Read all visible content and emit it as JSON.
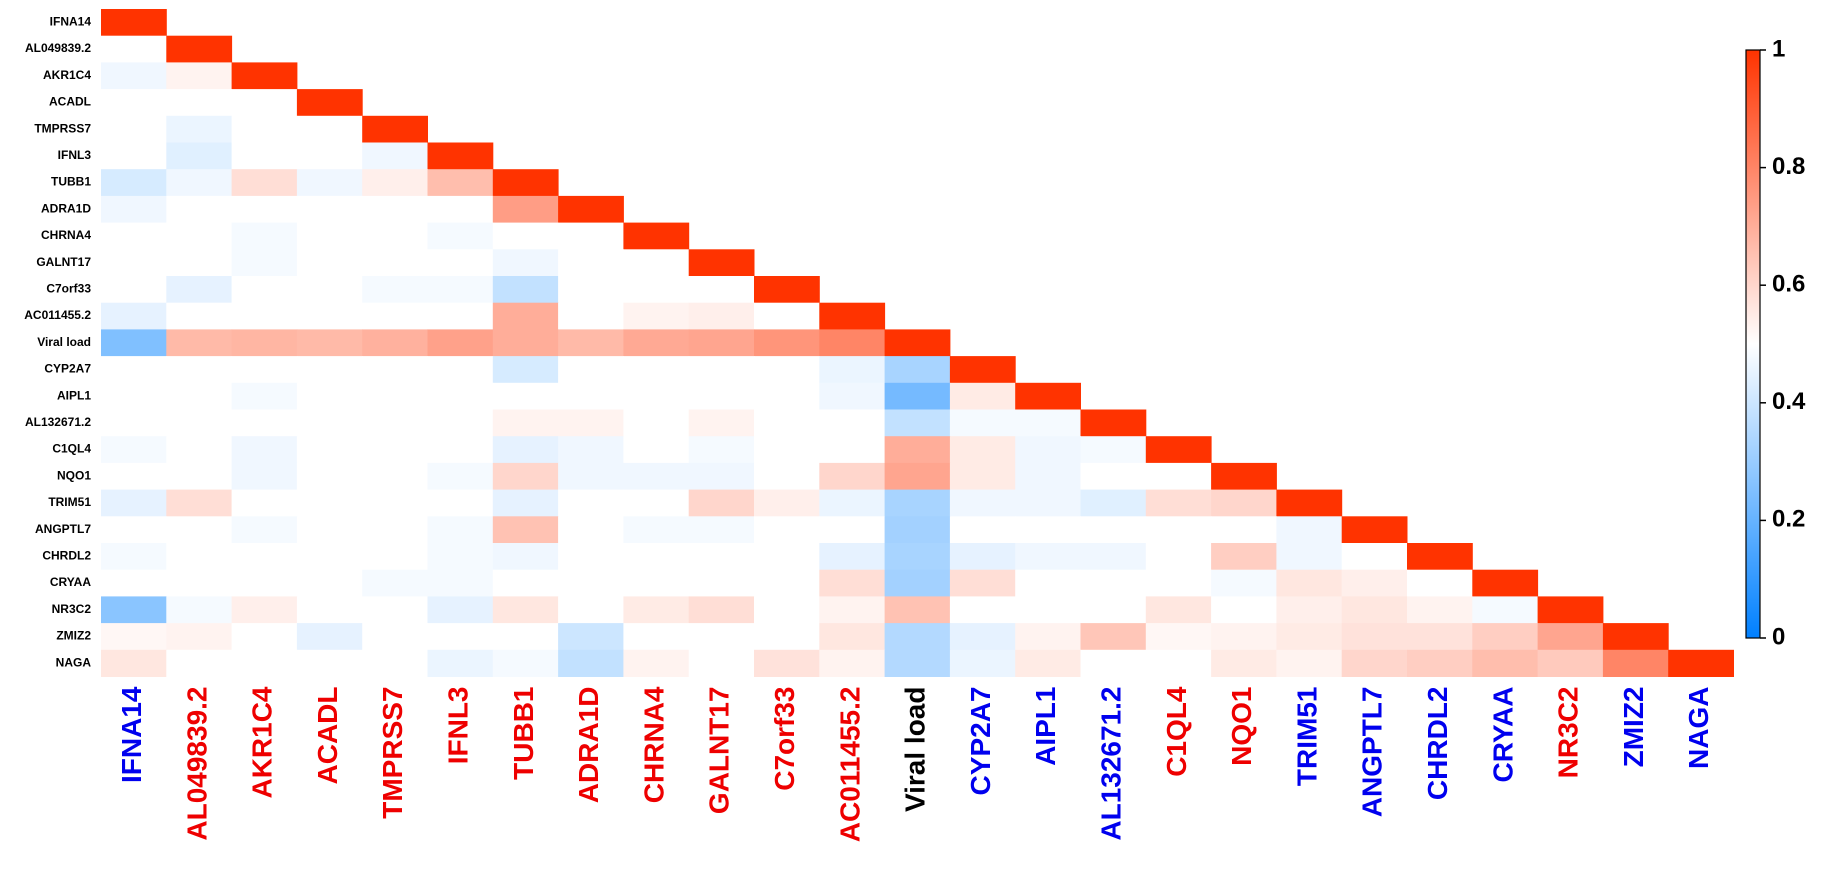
{
  "chart_data": {
    "type": "heatmap",
    "labels": [
      "IFNA14",
      "AL049839.2",
      "AKR1C4",
      "ACADL",
      "TMPRSS7",
      "IFNL3",
      "TUBB1",
      "ADRA1D",
      "CHRNA4",
      "GALNT17",
      "C7orf33",
      "AC011455.2",
      "Viral load",
      "CYP2A7",
      "AIPL1",
      "AL132671.2",
      "C1QL4",
      "NQO1",
      "TRIM51",
      "ANGPTL7",
      "CHRDL2",
      "CRYAA",
      "NR3C2",
      "ZMIZ2",
      "NAGA"
    ],
    "x_label_colors": [
      "#0000ee",
      "#ee0000",
      "#ee0000",
      "#ee0000",
      "#ee0000",
      "#ee0000",
      "#ee0000",
      "#ee0000",
      "#ee0000",
      "#ee0000",
      "#ee0000",
      "#ee0000",
      "#000000",
      "#0000ee",
      "#0000ee",
      "#0000ee",
      "#ee0000",
      "#ee0000",
      "#0000ee",
      "#0000ee",
      "#0000ee",
      "#0000ee",
      "#ee0000",
      "#0000ee",
      "#0000ee"
    ],
    "y_label_color": "#000000",
    "matrix": [
      [
        1
      ],
      [
        0.5,
        1
      ],
      [
        0.47,
        0.53,
        1
      ],
      [
        0.5,
        0.5,
        0.5,
        1
      ],
      [
        0.5,
        0.46,
        0.5,
        0.5,
        1
      ],
      [
        0.5,
        0.44,
        0.5,
        0.5,
        0.47,
        1
      ],
      [
        0.42,
        0.47,
        0.58,
        0.47,
        0.54,
        0.66,
        1
      ],
      [
        0.47,
        0.5,
        0.5,
        0.5,
        0.5,
        0.5,
        0.74,
        1
      ],
      [
        0.5,
        0.5,
        0.48,
        0.5,
        0.5,
        0.48,
        0.5,
        0.5,
        1
      ],
      [
        0.5,
        0.5,
        0.48,
        0.5,
        0.5,
        0.5,
        0.47,
        0.5,
        0.5,
        1
      ],
      [
        0.5,
        0.45,
        0.5,
        0.5,
        0.48,
        0.48,
        0.38,
        0.5,
        0.5,
        0.5,
        1
      ],
      [
        0.45,
        0.5,
        0.5,
        0.5,
        0.5,
        0.5,
        0.7,
        0.5,
        0.53,
        0.54,
        0.5,
        1
      ],
      [
        0.25,
        0.67,
        0.68,
        0.67,
        0.69,
        0.73,
        0.7,
        0.67,
        0.71,
        0.72,
        0.76,
        0.8,
        1
      ],
      [
        0.5,
        0.5,
        0.5,
        0.5,
        0.5,
        0.5,
        0.42,
        0.5,
        0.5,
        0.5,
        0.5,
        0.46,
        0.33,
        1
      ],
      [
        0.5,
        0.5,
        0.48,
        0.5,
        0.5,
        0.5,
        0.5,
        0.5,
        0.5,
        0.5,
        0.5,
        0.47,
        0.23,
        0.55,
        1
      ],
      [
        0.5,
        0.5,
        0.5,
        0.5,
        0.5,
        0.5,
        0.53,
        0.53,
        0.5,
        0.53,
        0.5,
        0.5,
        0.38,
        0.48,
        0.48,
        1
      ],
      [
        0.48,
        0.5,
        0.47,
        0.5,
        0.5,
        0.5,
        0.45,
        0.47,
        0.5,
        0.48,
        0.5,
        0.5,
        0.7,
        0.55,
        0.47,
        0.48,
        1
      ],
      [
        0.5,
        0.5,
        0.47,
        0.5,
        0.5,
        0.48,
        0.6,
        0.47,
        0.47,
        0.47,
        0.5,
        0.6,
        0.72,
        0.55,
        0.47,
        0.5,
        0.5,
        1
      ],
      [
        0.45,
        0.58,
        0.5,
        0.5,
        0.5,
        0.5,
        0.45,
        0.5,
        0.5,
        0.6,
        0.54,
        0.46,
        0.33,
        0.47,
        0.47,
        0.44,
        0.58,
        0.6,
        1
      ],
      [
        0.5,
        0.5,
        0.48,
        0.5,
        0.5,
        0.48,
        0.65,
        0.5,
        0.48,
        0.48,
        0.5,
        0.5,
        0.32,
        0.5,
        0.5,
        0.5,
        0.5,
        0.5,
        0.47,
        1
      ],
      [
        0.48,
        0.5,
        0.5,
        0.5,
        0.5,
        0.48,
        0.47,
        0.5,
        0.5,
        0.5,
        0.5,
        0.45,
        0.33,
        0.45,
        0.47,
        0.47,
        0.5,
        0.62,
        0.47,
        0.5,
        1
      ],
      [
        0.5,
        0.5,
        0.5,
        0.5,
        0.48,
        0.48,
        0.5,
        0.5,
        0.5,
        0.5,
        0.5,
        0.58,
        0.32,
        0.58,
        0.5,
        0.5,
        0.5,
        0.48,
        0.56,
        0.54,
        0.5,
        1
      ],
      [
        0.27,
        0.48,
        0.54,
        0.5,
        0.5,
        0.45,
        0.56,
        0.5,
        0.55,
        0.58,
        0.5,
        0.53,
        0.65,
        0.5,
        0.5,
        0.5,
        0.56,
        0.5,
        0.54,
        0.56,
        0.53,
        0.48,
        1
      ],
      [
        0.52,
        0.53,
        0.5,
        0.45,
        0.5,
        0.5,
        0.5,
        0.4,
        0.5,
        0.5,
        0.5,
        0.56,
        0.35,
        0.45,
        0.53,
        0.64,
        0.52,
        0.53,
        0.55,
        0.57,
        0.57,
        0.62,
        0.72,
        1
      ],
      [
        0.56,
        0.5,
        0.5,
        0.5,
        0.5,
        0.46,
        0.48,
        0.38,
        0.53,
        0.5,
        0.57,
        0.53,
        0.35,
        0.46,
        0.55,
        0.5,
        0.5,
        0.55,
        0.53,
        0.6,
        0.62,
        0.66,
        0.63,
        0.8,
        1
      ]
    ],
    "colorscale": [
      "#0080ff",
      "#ffffff",
      "#ff3300"
    ],
    "zlim": [
      0,
      1
    ],
    "zticks": [
      0,
      0.2,
      0.4,
      0.6,
      0.8,
      1
    ]
  }
}
